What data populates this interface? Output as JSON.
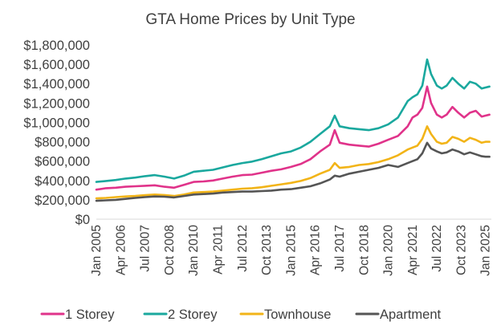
{
  "chart_data": {
    "type": "line",
    "title": "GTA Home Prices by Unit Type",
    "xlabel": "",
    "ylabel": "",
    "ylim": [
      0,
      1800000
    ],
    "y_ticks": [
      0,
      200000,
      400000,
      600000,
      800000,
      1000000,
      1200000,
      1400000,
      1600000,
      1800000
    ],
    "y_tick_labels": [
      "$0",
      "$200,000",
      "$400,000",
      "$600,000",
      "$800,000",
      "$1,000,000",
      "$1,200,000",
      "$1,400,000",
      "$1,600,000",
      "$1,800,000"
    ],
    "x_tick_labels": [
      "Jan 2005",
      "Apr 2006",
      "Jul 2007",
      "Oct 2008",
      "Jan 2010",
      "Apr 2011",
      "Jul 2012",
      "Oct 2013",
      "Jan 2015",
      "Apr 2016",
      "Jul 2017",
      "Oct 2018",
      "Jan 2020",
      "Apr 2021",
      "Jul 2022",
      "Oct 2023",
      "Jan 2025"
    ],
    "x_tick_years": [
      2005.0,
      2006.25,
      2007.5,
      2008.75,
      2010.0,
      2011.25,
      2012.5,
      2013.75,
      2015.0,
      2016.25,
      2017.5,
      2018.75,
      2020.0,
      2021.25,
      2022.5,
      2023.75,
      2025.0
    ],
    "x_range": [
      2005.0,
      2025.3
    ],
    "grid": false,
    "legend_position": "bottom",
    "series": [
      {
        "name": "1 Storey",
        "color": "#e0338a",
        "x": [
          2005.0,
          2005.5,
          2006.0,
          2006.5,
          2007.0,
          2007.5,
          2008.0,
          2008.5,
          2009.0,
          2009.5,
          2010.0,
          2010.5,
          2011.0,
          2011.5,
          2012.0,
          2012.5,
          2013.0,
          2013.5,
          2014.0,
          2014.5,
          2015.0,
          2015.5,
          2016.0,
          2016.5,
          2017.0,
          2017.25,
          2017.5,
          2018.0,
          2018.5,
          2019.0,
          2019.5,
          2020.0,
          2020.5,
          2021.0,
          2021.25,
          2021.5,
          2021.75,
          2022.0,
          2022.2,
          2022.5,
          2022.75,
          2023.0,
          2023.3,
          2023.6,
          2023.9,
          2024.2,
          2024.5,
          2024.8,
          2025.0,
          2025.2
        ],
        "values": [
          305000,
          320000,
          325000,
          335000,
          340000,
          345000,
          350000,
          335000,
          325000,
          355000,
          385000,
          390000,
          400000,
          420000,
          440000,
          455000,
          460000,
          480000,
          500000,
          515000,
          540000,
          570000,
          620000,
          700000,
          770000,
          920000,
          790000,
          770000,
          760000,
          750000,
          780000,
          820000,
          860000,
          960000,
          1050000,
          1080000,
          1150000,
          1370000,
          1200000,
          1080000,
          1050000,
          1080000,
          1160000,
          1100000,
          1050000,
          1100000,
          1120000,
          1060000,
          1070000,
          1080000
        ]
      },
      {
        "name": "2 Storey",
        "color": "#1aa89e",
        "x": [
          2005.0,
          2005.5,
          2006.0,
          2006.5,
          2007.0,
          2007.5,
          2008.0,
          2008.5,
          2009.0,
          2009.5,
          2010.0,
          2010.5,
          2011.0,
          2011.5,
          2012.0,
          2012.5,
          2013.0,
          2013.5,
          2014.0,
          2014.5,
          2015.0,
          2015.5,
          2016.0,
          2016.5,
          2017.0,
          2017.25,
          2017.5,
          2018.0,
          2018.5,
          2019.0,
          2019.5,
          2020.0,
          2020.5,
          2021.0,
          2021.25,
          2021.5,
          2021.75,
          2022.0,
          2022.2,
          2022.5,
          2022.75,
          2023.0,
          2023.3,
          2023.6,
          2023.9,
          2024.2,
          2024.5,
          2024.8,
          2025.0,
          2025.2
        ],
        "values": [
          385000,
          395000,
          405000,
          420000,
          430000,
          445000,
          455000,
          440000,
          420000,
          450000,
          490000,
          500000,
          510000,
          535000,
          560000,
          580000,
          595000,
          620000,
          650000,
          680000,
          700000,
          740000,
          800000,
          880000,
          960000,
          1070000,
          960000,
          940000,
          930000,
          920000,
          940000,
          980000,
          1050000,
          1220000,
          1260000,
          1290000,
          1380000,
          1650000,
          1500000,
          1380000,
          1350000,
          1380000,
          1460000,
          1400000,
          1350000,
          1420000,
          1400000,
          1350000,
          1360000,
          1370000
        ]
      },
      {
        "name": "Townhouse",
        "color": "#f2b418",
        "x": [
          2005.0,
          2005.5,
          2006.0,
          2006.5,
          2007.0,
          2007.5,
          2008.0,
          2008.5,
          2009.0,
          2009.5,
          2010.0,
          2010.5,
          2011.0,
          2011.5,
          2012.0,
          2012.5,
          2013.0,
          2013.5,
          2014.0,
          2014.5,
          2015.0,
          2015.5,
          2016.0,
          2016.5,
          2017.0,
          2017.25,
          2017.5,
          2018.0,
          2018.5,
          2019.0,
          2019.5,
          2020.0,
          2020.5,
          2021.0,
          2021.25,
          2021.5,
          2021.75,
          2022.0,
          2022.2,
          2022.5,
          2022.75,
          2023.0,
          2023.3,
          2023.6,
          2023.9,
          2024.2,
          2024.5,
          2024.8,
          2025.0,
          2025.2
        ],
        "values": [
          215000,
          220000,
          228000,
          235000,
          240000,
          248000,
          255000,
          250000,
          240000,
          255000,
          275000,
          280000,
          285000,
          295000,
          305000,
          315000,
          320000,
          330000,
          345000,
          360000,
          375000,
          395000,
          425000,
          470000,
          510000,
          580000,
          530000,
          540000,
          560000,
          570000,
          590000,
          620000,
          660000,
          720000,
          740000,
          760000,
          830000,
          960000,
          880000,
          800000,
          780000,
          790000,
          850000,
          830000,
          800000,
          840000,
          820000,
          790000,
          800000,
          800000
        ]
      },
      {
        "name": "Apartment",
        "color": "#555555",
        "x": [
          2005.0,
          2005.5,
          2006.0,
          2006.5,
          2007.0,
          2007.5,
          2008.0,
          2008.5,
          2009.0,
          2009.5,
          2010.0,
          2010.5,
          2011.0,
          2011.5,
          2012.0,
          2012.5,
          2013.0,
          2013.5,
          2014.0,
          2014.5,
          2015.0,
          2015.5,
          2016.0,
          2016.5,
          2017.0,
          2017.25,
          2017.5,
          2018.0,
          2018.5,
          2019.0,
          2019.5,
          2020.0,
          2020.5,
          2021.0,
          2021.25,
          2021.5,
          2021.75,
          2022.0,
          2022.2,
          2022.5,
          2022.75,
          2023.0,
          2023.3,
          2023.6,
          2023.9,
          2024.2,
          2024.5,
          2024.8,
          2025.0,
          2025.2
        ],
        "values": [
          190000,
          195000,
          200000,
          210000,
          220000,
          228000,
          235000,
          232000,
          225000,
          240000,
          255000,
          260000,
          265000,
          275000,
          280000,
          285000,
          285000,
          290000,
          295000,
          305000,
          310000,
          325000,
          340000,
          370000,
          410000,
          450000,
          440000,
          470000,
          490000,
          510000,
          530000,
          560000,
          540000,
          580000,
          600000,
          620000,
          680000,
          790000,
          730000,
          700000,
          680000,
          690000,
          720000,
          700000,
          670000,
          690000,
          670000,
          650000,
          645000,
          645000
        ]
      }
    ]
  }
}
